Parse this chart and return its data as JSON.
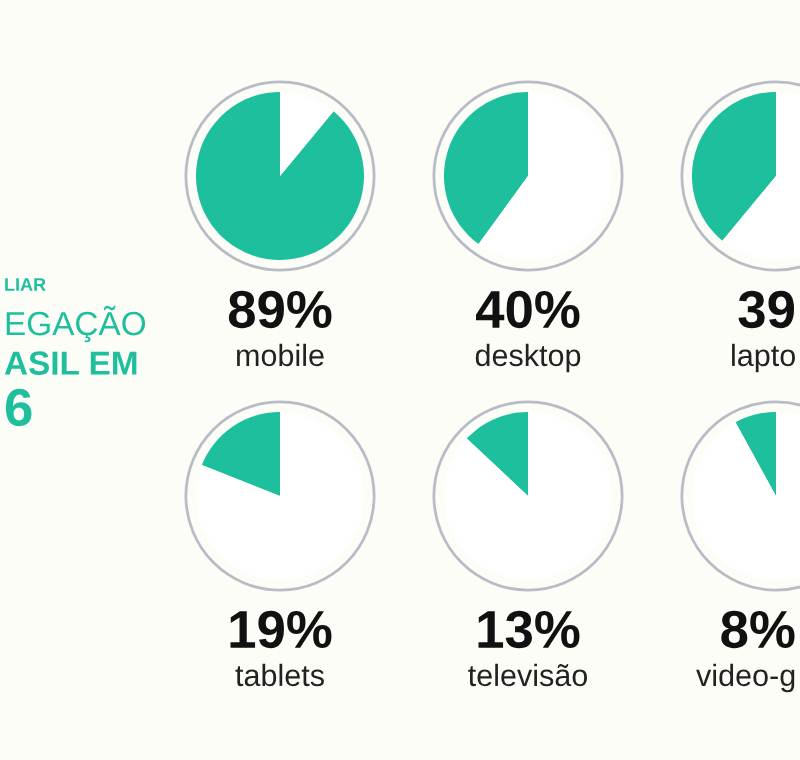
{
  "chart_data": [
    {
      "type": "other",
      "annotations": [
        "LIAR",
        "EGAÇÃO",
        "ASIL EM",
        "6"
      ]
    },
    {
      "type": "pie",
      "annotations": [
        "89%"
      ],
      "xlabel": "mobile",
      "categories": [
        null,
        null
      ],
      "values": [
        89,
        11
      ],
      "colors": [
        "#1dbf9c",
        "#ffffff"
      ]
    },
    {
      "type": "pie",
      "annotations": [
        "40%"
      ],
      "xlabel": "desktop",
      "categories": [
        null,
        null
      ],
      "values": [
        40,
        60
      ],
      "colors": [
        "#1dbf9c",
        "#ffffff"
      ]
    },
    {
      "type": "pie",
      "annotations": [
        "39"
      ],
      "xlabel": "lapto",
      "categories": [
        null,
        null
      ],
      "values": [
        39,
        61
      ],
      "colors": [
        "#1dbf9c",
        "#ffffff"
      ]
    },
    {
      "type": "pie",
      "annotations": [
        "19%"
      ],
      "xlabel": "tablets",
      "categories": [
        null,
        null
      ],
      "values": [
        19,
        81
      ],
      "colors": [
        "#1dbf9c",
        "#ffffff"
      ]
    },
    {
      "type": "pie",
      "annotations": [
        "13%"
      ],
      "xlabel": "televisão",
      "categories": [
        null,
        null
      ],
      "values": [
        13,
        87
      ],
      "colors": [
        "#1dbf9c",
        "#ffffff"
      ]
    },
    {
      "type": "pie",
      "annotations": [
        "8%"
      ],
      "xlabel": "video-g",
      "categories": [
        null,
        null
      ],
      "values": [
        8,
        92
      ],
      "colors": [
        "#1dbf9c",
        "#ffffff"
      ]
    }
  ]
}
